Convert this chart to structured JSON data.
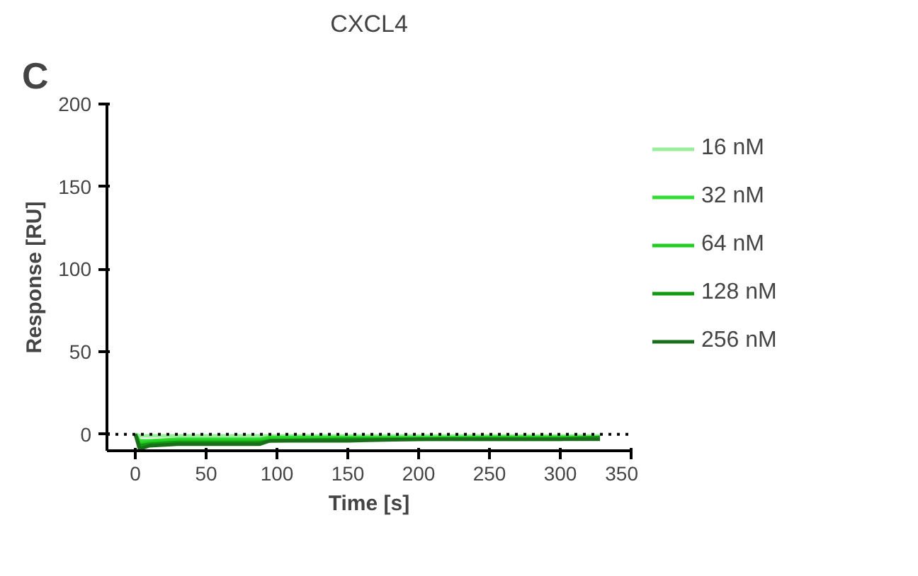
{
  "chart_data": {
    "type": "line",
    "title": "CXCL4",
    "annotations": [
      "C"
    ],
    "xlabel": "Time [s]",
    "ylabel": "Response [RU]",
    "x": [
      0,
      3,
      10,
      30,
      60,
      88,
      95,
      150,
      200,
      250,
      300,
      328
    ],
    "series": [
      {
        "name": "16 nM",
        "color": "#99ee99",
        "values": [
          0,
          -1,
          -1,
          -1,
          -1,
          -1,
          -1,
          -1,
          -1,
          -1,
          -1,
          -1
        ]
      },
      {
        "name": "32 nM",
        "color": "#33dd33",
        "values": [
          0,
          -4,
          -4,
          -3,
          -3,
          -3,
          -2,
          -2,
          -2,
          -2,
          -2,
          -2
        ]
      },
      {
        "name": "64 nM",
        "color": "#22cc22",
        "values": [
          0,
          -6,
          -5,
          -4,
          -4,
          -4,
          -3,
          -3,
          -3,
          -2,
          -2,
          -2
        ]
      },
      {
        "name": "128 nM",
        "color": "#119911",
        "values": [
          0,
          -7,
          -6,
          -5,
          -5,
          -5,
          -4,
          -3,
          -3,
          -3,
          -3,
          -2
        ]
      },
      {
        "name": "256 nM",
        "color": "#1a6e1a",
        "values": [
          0,
          -9,
          -7,
          -6,
          -6,
          -6,
          -4,
          -4,
          -3,
          -3,
          -3,
          -3
        ]
      }
    ],
    "xlim": [
      -20,
      350
    ],
    "ylim": [
      -10,
      200
    ],
    "xticks": [
      0,
      50,
      100,
      150,
      200,
      250,
      300,
      350
    ],
    "yticks": [
      0,
      50,
      100,
      150,
      200
    ],
    "ref_lines": [
      {
        "axis": "y",
        "value": 0,
        "line_style": "dotted",
        "color": "#000000"
      }
    ],
    "grid": false,
    "legend": "right",
    "line_style": "solid",
    "marker": "none"
  }
}
